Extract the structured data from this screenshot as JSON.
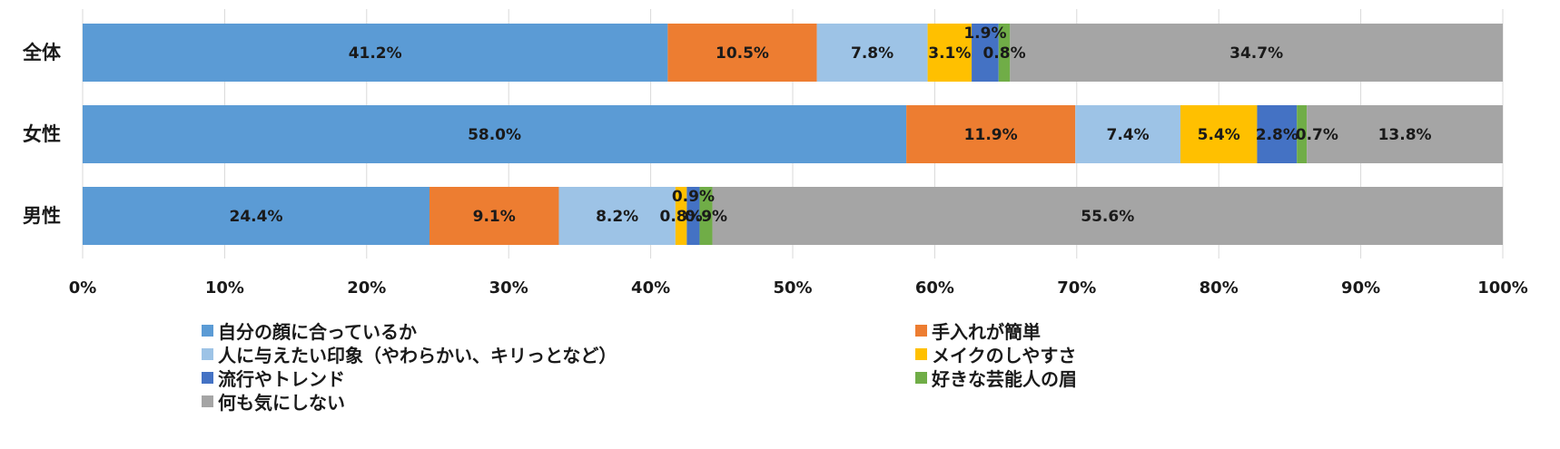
{
  "chart_data": {
    "type": "bar",
    "orientation": "horizontal",
    "stacked": "percent",
    "categories": [
      "全体",
      "女性",
      "男性"
    ],
    "series": [
      {
        "name": "自分の顔に合っているか",
        "color": "#5B9BD5",
        "values": [
          41.2,
          58.0,
          24.4
        ]
      },
      {
        "name": "手入れが簡単",
        "color": "#ED7D31",
        "values": [
          10.5,
          11.9,
          9.1
        ]
      },
      {
        "name": "人に与えたい印象（やわらかい、キリっとなど）",
        "color": "#9DC3E6",
        "values": [
          7.8,
          7.4,
          8.2
        ]
      },
      {
        "name": "メイクのしやすさ",
        "color": "#FFC000",
        "values": [
          3.1,
          5.4,
          0.8
        ]
      },
      {
        "name": "流行やトレンド",
        "color": "#4472C4",
        "values": [
          1.9,
          2.8,
          0.9
        ]
      },
      {
        "name": "好きな芸能人の眉",
        "color": "#70AD47",
        "values": [
          0.8,
          0.7,
          0.9
        ]
      },
      {
        "name": "何も気にしない",
        "color": "#A5A5A5",
        "values": [
          34.7,
          13.8,
          55.6
        ]
      }
    ],
    "data_labels": [
      [
        "41.2%",
        "10.5%",
        "7.8%",
        "3.1%",
        "1.9%",
        "0.8%",
        "34.7%"
      ],
      [
        "58.0%",
        "11.9%",
        "7.4%",
        "5.4%",
        "2.8%",
        "0.7%",
        "13.8%"
      ],
      [
        "24.4%",
        "9.1%",
        "8.2%",
        "0.8%",
        "0.9%",
        "0.9%",
        "55.6%"
      ]
    ],
    "x_ticks": [
      "0%",
      "10%",
      "20%",
      "30%",
      "40%",
      "50%",
      "60%",
      "70%",
      "80%",
      "90%",
      "100%"
    ],
    "xlim": [
      0,
      100
    ],
    "grid": "vertical",
    "legend_position": "bottom"
  }
}
